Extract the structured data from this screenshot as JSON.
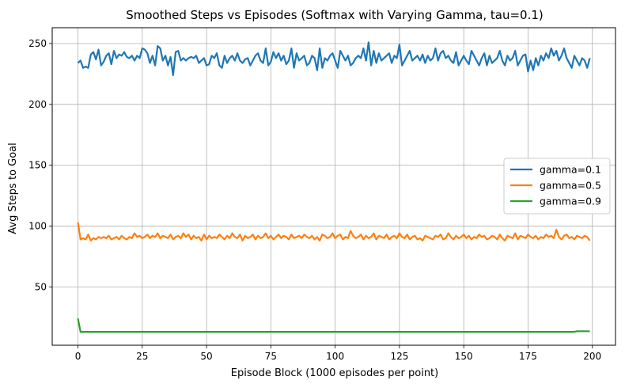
{
  "chart_data": {
    "type": "line",
    "title": "Smoothed Steps vs Episodes (Softmax with Varying Gamma, tau=0.1)",
    "xlabel": "Episode Block (1000 episodes per point)",
    "ylabel": "Avg Steps to Goal",
    "xlim": [
      -10,
      209
    ],
    "ylim": [
      2,
      263
    ],
    "xticks": [
      0,
      25,
      50,
      75,
      100,
      125,
      150,
      175,
      200
    ],
    "yticks": [
      50,
      100,
      150,
      200,
      250
    ],
    "grid": true,
    "legend_position": "center-right",
    "series": [
      {
        "name": "gamma=0.1",
        "color": "#1f77b4",
        "values": [
          234,
          236,
          230,
          231,
          230,
          241,
          243,
          237,
          245,
          232,
          235,
          240,
          242,
          233,
          244,
          238,
          241,
          240,
          243,
          239,
          238,
          240,
          236,
          240,
          238,
          246,
          245,
          242,
          234,
          240,
          232,
          248,
          246,
          236,
          240,
          232,
          239,
          224,
          243,
          244,
          236,
          238,
          236,
          238,
          239,
          238,
          240,
          234,
          236,
          238,
          232,
          233,
          240,
          238,
          242,
          232,
          230,
          240,
          234,
          238,
          240,
          236,
          242,
          236,
          234,
          237,
          238,
          232,
          236,
          240,
          242,
          236,
          234,
          246,
          232,
          235,
          243,
          238,
          242,
          236,
          240,
          233,
          236,
          246,
          230,
          242,
          236,
          238,
          240,
          232,
          234,
          240,
          238,
          228,
          246,
          230,
          238,
          236,
          240,
          242,
          236,
          230,
          244,
          240,
          236,
          240,
          232,
          234,
          238,
          240,
          238,
          246,
          236,
          251,
          232,
          244,
          234,
          242,
          236,
          238,
          240,
          242,
          234,
          240,
          238,
          249,
          232,
          236,
          240,
          244,
          236,
          238,
          240,
          236,
          241,
          234,
          240,
          236,
          238,
          246,
          236,
          242,
          244,
          238,
          240,
          236,
          234,
          243,
          232,
          236,
          240,
          236,
          233,
          244,
          240,
          236,
          232,
          238,
          242,
          232,
          240,
          234,
          236,
          238,
          244,
          236,
          232,
          240,
          236,
          238,
          244,
          232,
          236,
          240,
          241,
          227,
          236,
          228,
          238,
          232,
          240,
          236,
          242,
          238,
          246,
          240,
          244,
          236,
          240,
          246,
          238,
          234,
          230,
          240,
          236,
          232,
          238,
          236,
          230,
          238
        ]
      },
      {
        "name": "gamma=0.5",
        "color": "#ff7f0e",
        "values": [
          103,
          89,
          90,
          89,
          93,
          88,
          90,
          89,
          91,
          90,
          91,
          90,
          92,
          89,
          90,
          91,
          89,
          92,
          90,
          89,
          91,
          90,
          94,
          91,
          92,
          90,
          91,
          93,
          90,
          92,
          91,
          94,
          90,
          92,
          91,
          90,
          93,
          89,
          91,
          92,
          90,
          94,
          91,
          93,
          89,
          92,
          90,
          91,
          88,
          93,
          89,
          92,
          90,
          91,
          90,
          93,
          91,
          89,
          92,
          90,
          94,
          91,
          90,
          93,
          88,
          92,
          90,
          91,
          93,
          89,
          92,
          90,
          91,
          94,
          90,
          92,
          89,
          91,
          93,
          90,
          92,
          91,
          89,
          93,
          90,
          91,
          92,
          90,
          93,
          91,
          90,
          92,
          89,
          91,
          88,
          93,
          92,
          90,
          91,
          94,
          90,
          92,
          93,
          89,
          91,
          90,
          96,
          92,
          90,
          91,
          93,
          89,
          92,
          90,
          91,
          94,
          89,
          92,
          91,
          90,
          93,
          89,
          91,
          92,
          90,
          94,
          91,
          90,
          93,
          89,
          91,
          92,
          89,
          90,
          88,
          92,
          91,
          90,
          89,
          92,
          91,
          93,
          89,
          90,
          94,
          91,
          89,
          92,
          90,
          91,
          93,
          90,
          92,
          89,
          91,
          90,
          93,
          91,
          92,
          89,
          90,
          92,
          91,
          89,
          93,
          90,
          88,
          92,
          91,
          90,
          94,
          89,
          92,
          91,
          90,
          93,
          91,
          90,
          92,
          89,
          91,
          90,
          93,
          91,
          92,
          90,
          97,
          91,
          89,
          92,
          93,
          90,
          91,
          89,
          92,
          91,
          90,
          92,
          91,
          88
        ]
      },
      {
        "name": "gamma=0.9",
        "color": "#2ca02c",
        "values": [
          24,
          13,
          13,
          13,
          13,
          13,
          13,
          13,
          13,
          13,
          13,
          13,
          13,
          13,
          13,
          13,
          13,
          13,
          13,
          13,
          13,
          13,
          13,
          13,
          13,
          13,
          13,
          13,
          13,
          13,
          13,
          13,
          13,
          13,
          13,
          13,
          13,
          13,
          13,
          13,
          13,
          13,
          13,
          13,
          13,
          13,
          13,
          13,
          13,
          13,
          13,
          13,
          13,
          13,
          13,
          13,
          13,
          13,
          13,
          13,
          13,
          13,
          13,
          13,
          13,
          13,
          13,
          13,
          13,
          13,
          13,
          13,
          13,
          13,
          13,
          13,
          13,
          13,
          13,
          13,
          13,
          13,
          13,
          13,
          13,
          13,
          13,
          13,
          13,
          13,
          13,
          13,
          13,
          13,
          13,
          13,
          13,
          13,
          13,
          13,
          13,
          13,
          13,
          13,
          13,
          13,
          13,
          13,
          13,
          13,
          13,
          13,
          13,
          13,
          13,
          13,
          13,
          13,
          13,
          13,
          13,
          13,
          13,
          13,
          13,
          13,
          13,
          13,
          13,
          13,
          13,
          13,
          13,
          13,
          13,
          13,
          13,
          13,
          13,
          13,
          13,
          13,
          13,
          13,
          13,
          13,
          13,
          13,
          13,
          13,
          13,
          13,
          13,
          13,
          13,
          13,
          13,
          13,
          13,
          13,
          13,
          13,
          13,
          13,
          13,
          13,
          13,
          13,
          13,
          13,
          13,
          13,
          13,
          13,
          13,
          13,
          13,
          13,
          13,
          13,
          13,
          13,
          13,
          13,
          13,
          13,
          13,
          13,
          13,
          13,
          13,
          13,
          13,
          13,
          13.5,
          13.5,
          13.5,
          13.5,
          13.5,
          13.5
        ]
      }
    ]
  }
}
